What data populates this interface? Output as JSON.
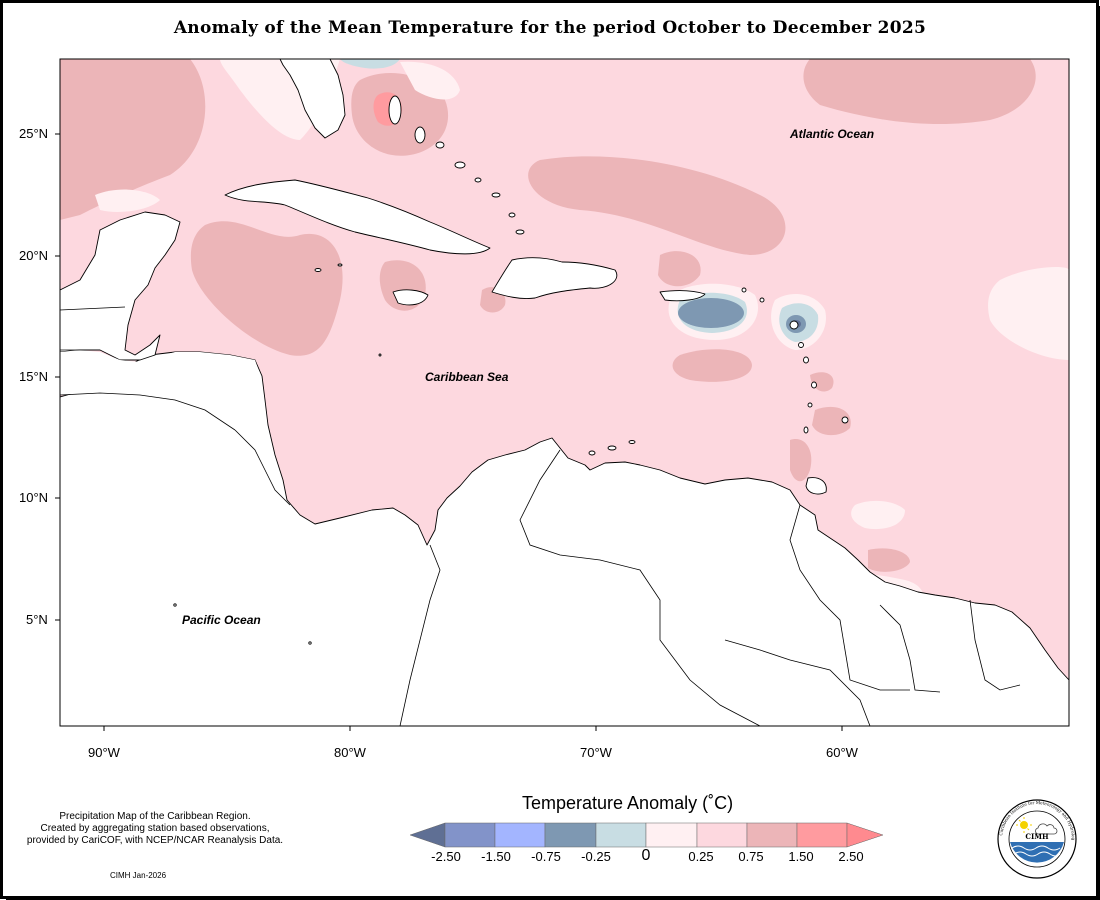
{
  "title": "Anomaly of the Mean Temperature for the period October to December 2025",
  "map": {
    "lat_labels": [
      "25°N",
      "20°N",
      "15°N",
      "10°N",
      "5°N"
    ],
    "lon_labels": [
      "90°W",
      "80°W",
      "70°W",
      "60°W"
    ],
    "ocean_labels": {
      "atlantic": "Atlantic Ocean",
      "caribbean": "Caribbean Sea",
      "pacific": "Pacific Ocean"
    },
    "colors": {
      "land": "#ffffff",
      "coastline": "#000000",
      "base_anomaly": "#fdd8df"
    }
  },
  "legend": {
    "title": "Temperature Anomaly (˚C)",
    "ticks": [
      "-2.50",
      "-1.50",
      "-0.75",
      "-0.25",
      "0",
      "0.25",
      "0.75",
      "1.50",
      "2.50"
    ],
    "bins": [
      {
        "color": "#5f6f94"
      },
      {
        "color": "#8293c9"
      },
      {
        "color": "#a3b5ff"
      },
      {
        "color": "#7e98b2"
      },
      {
        "color": "#c8dde3"
      },
      {
        "color": "#fff0f2"
      },
      {
        "color": "#fdd8df"
      },
      {
        "color": "#ecb5b8"
      },
      {
        "color": "#ff9b9f"
      },
      {
        "color": "#ff8a8f"
      }
    ]
  },
  "footer": {
    "note_line1": "Precipitation Map of the Caribbean Region.",
    "note_line2": "Created by aggregating station based observations,",
    "note_line3": "provided by CariCOF, with NCEP/NCAR Reanalysis Data.",
    "credit": "CIMH Jan-2026",
    "logo_text": "CIMH",
    "logo_ring_text": "Caribbean Institute for Meteorology and Hydrology"
  }
}
